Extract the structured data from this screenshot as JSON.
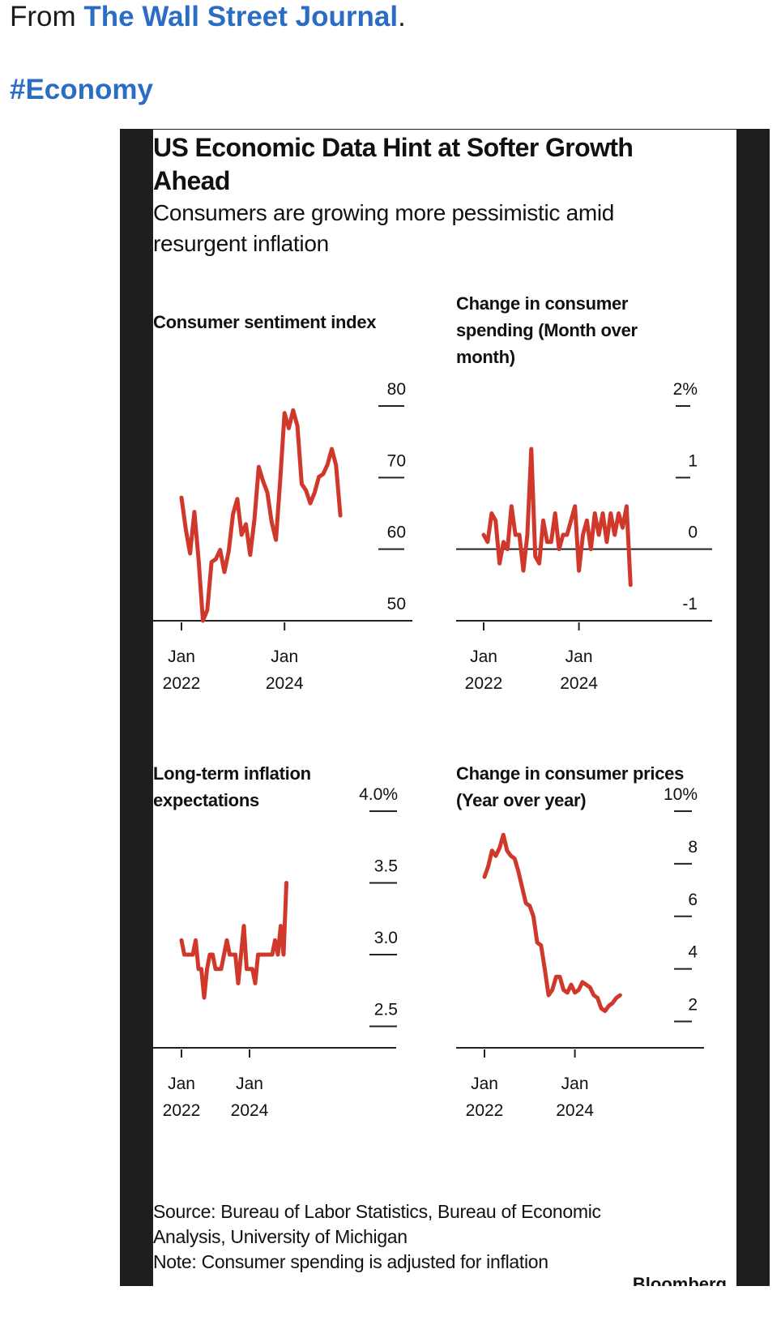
{
  "post": {
    "from_prefix": "From ",
    "source_link": "The Wall Street Journal",
    "from_suffix": ".",
    "hashtag": "#Economy"
  },
  "card": {
    "title": "US Economic Data Hint at Softer Growth Ahead",
    "subtitle": "Consumers are growing more pessimistic amid resurgent inflation",
    "source": "Source: Bureau of Labor Statistics, Bureau of Economic Analysis, University of Michigan",
    "note": "Note: Consumer spending is adjusted for inflation",
    "brand": "Bloomberg"
  },
  "colors": {
    "line": "#d0382b",
    "axis": "#222222",
    "frame": "#1e1e1e",
    "link": "#2b6cc4"
  },
  "chart_data": [
    {
      "type": "line",
      "title": "Consumer sentiment index",
      "x_start": "2022-01",
      "x_ticks": [
        {
          "line1": "Jan",
          "line2": "2022",
          "month_index": 0
        },
        {
          "line1": "Jan",
          "line2": "2024",
          "month_index": 24
        }
      ],
      "y_ticks": [
        {
          "label": "50",
          "value": 50
        },
        {
          "label": "60",
          "value": 60
        },
        {
          "label": "70",
          "value": 70
        },
        {
          "label": "80",
          "value": 80
        }
      ],
      "ylim": [
        50,
        80
      ],
      "baseline": 50,
      "values": [
        67.2,
        62.8,
        59.4,
        65.2,
        58.4,
        50.0,
        51.5,
        58.2,
        58.6,
        59.9,
        56.8,
        59.7,
        64.9,
        67.0,
        62.0,
        63.5,
        59.2,
        64.2,
        71.5,
        69.5,
        67.9,
        63.8,
        61.3,
        69.7,
        79.0,
        76.9,
        79.4,
        77.2,
        69.1,
        68.2,
        66.4,
        67.9,
        70.1,
        70.5,
        71.8,
        74.0,
        71.7,
        64.7
      ],
      "xlabel": "",
      "ylabel": ""
    },
    {
      "type": "line",
      "title": "Change in consumer spending (Month over month)",
      "x_start": "2022-01",
      "x_ticks": [
        {
          "line1": "Jan",
          "line2": "2022",
          "month_index": 0
        },
        {
          "line1": "Jan",
          "line2": "2024",
          "month_index": 24
        }
      ],
      "y_ticks": [
        {
          "label": "-1",
          "value": -1
        },
        {
          "label": "0",
          "value": 0
        },
        {
          "label": "1",
          "value": 1
        },
        {
          "label": "2%",
          "value": 2
        }
      ],
      "ylim": [
        -1,
        2
      ],
      "baseline": -1,
      "zero_line": 0,
      "values": [
        0.2,
        0.1,
        0.5,
        0.4,
        -0.2,
        0.1,
        0.0,
        0.6,
        0.2,
        0.2,
        -0.3,
        0.2,
        1.4,
        -0.1,
        -0.2,
        0.4,
        0.1,
        0.1,
        0.5,
        0.0,
        0.2,
        0.2,
        0.4,
        0.6,
        -0.3,
        0.2,
        0.4,
        0.0,
        0.5,
        0.2,
        0.5,
        0.1,
        0.5,
        0.2,
        0.5,
        0.3,
        0.6,
        -0.5
      ],
      "xlabel": "",
      "ylabel": ""
    },
    {
      "type": "line",
      "title": "Long-term inflation expectations",
      "x_start": "2022-01",
      "x_ticks": [
        {
          "line1": "Jan",
          "line2": "2022",
          "month_index": 0
        },
        {
          "line1": "Jan",
          "line2": "2024",
          "month_index": 24
        }
      ],
      "y_ticks": [
        {
          "label": "2.5",
          "value": 2.5
        },
        {
          "label": "3.0",
          "value": 3.0
        },
        {
          "label": "3.5",
          "value": 3.5
        },
        {
          "label": "4.0%",
          "value": 4.0
        }
      ],
      "ylim": [
        2.35,
        4.0
      ],
      "baseline": 2.35,
      "values": [
        3.1,
        3.0,
        3.0,
        3.0,
        3.0,
        3.1,
        2.9,
        2.9,
        2.7,
        2.9,
        3.0,
        3.0,
        2.9,
        2.9,
        2.9,
        3.0,
        3.1,
        3.0,
        3.0,
        3.0,
        2.8,
        3.0,
        3.2,
        2.9,
        2.9,
        2.9,
        2.8,
        3.0,
        3.0,
        3.0,
        3.0,
        3.0,
        3.0,
        3.1,
        3.0,
        3.2,
        3.0,
        3.5
      ],
      "xlabel": "",
      "ylabel": ""
    },
    {
      "type": "line",
      "title": "Change in consumer prices (Year over year)",
      "x_start": "2022-01",
      "x_ticks": [
        {
          "line1": "Jan",
          "line2": "2022",
          "month_index": 0
        },
        {
          "line1": "Jan",
          "line2": "2024",
          "month_index": 24
        }
      ],
      "y_ticks": [
        {
          "label": "2",
          "value": 2
        },
        {
          "label": "4",
          "value": 4
        },
        {
          "label": "6",
          "value": 6
        },
        {
          "label": "8",
          "value": 8
        },
        {
          "label": "10%",
          "value": 10
        }
      ],
      "ylim": [
        1,
        10
      ],
      "baseline": 1,
      "values": [
        7.5,
        7.9,
        8.5,
        8.3,
        8.6,
        9.1,
        8.5,
        8.3,
        8.2,
        7.7,
        7.1,
        6.5,
        6.4,
        6.0,
        5.0,
        4.9,
        4.0,
        3.0,
        3.2,
        3.7,
        3.7,
        3.2,
        3.1,
        3.4,
        3.1,
        3.2,
        3.5,
        3.4,
        3.3,
        3.0,
        2.9,
        2.5,
        2.4,
        2.6,
        2.7,
        2.9,
        3.0
      ],
      "xlabel": "",
      "ylabel": ""
    }
  ]
}
